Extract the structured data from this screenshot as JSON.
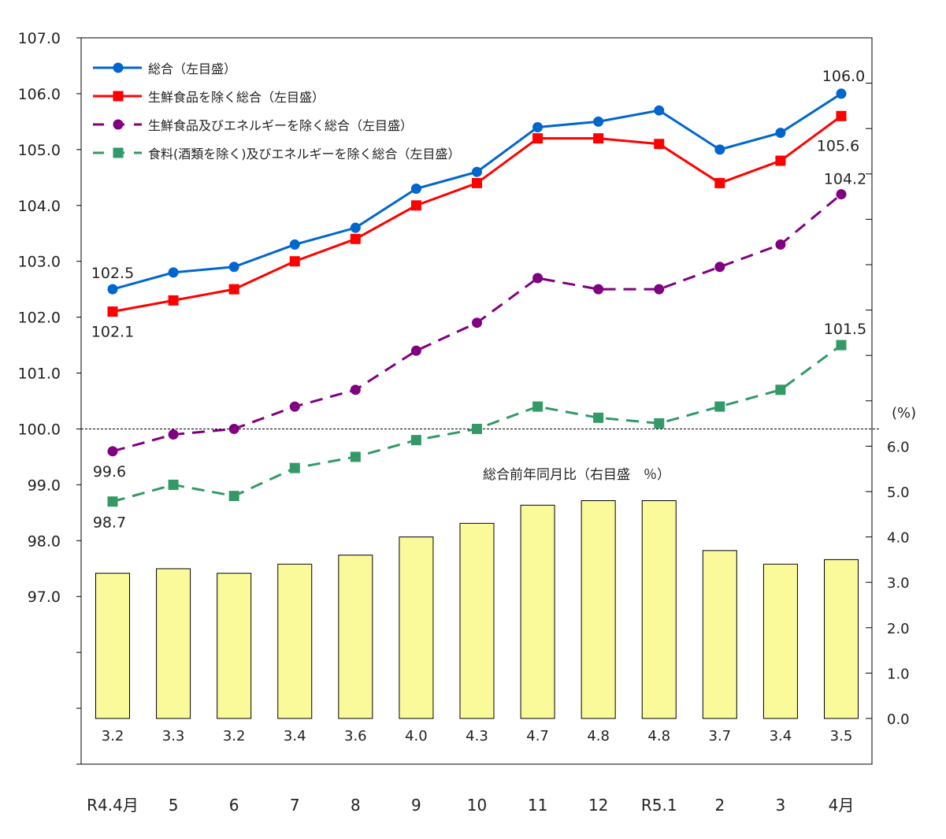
{
  "chart_data": {
    "type": "line+bar",
    "categories": [
      "R4.4月",
      "5",
      "6",
      "7",
      "8",
      "9",
      "10",
      "11",
      "12",
      "R5.1",
      "2",
      "3",
      "4月"
    ],
    "left_axis": {
      "min": 94,
      "max": 107,
      "labeled_ticks": [
        "97.0",
        "98.0",
        "99.0",
        "100.0",
        "101.0",
        "102.0",
        "103.0",
        "104.0",
        "105.0",
        "106.0",
        "107.0"
      ],
      "reference_line": 100
    },
    "right_axis": {
      "min": 0,
      "max": 15,
      "unit_label": "(%)",
      "labeled_ticks": [
        "0.0",
        "1.0",
        "2.0",
        "3.0",
        "4.0",
        "5.0",
        "6.0"
      ]
    },
    "series": [
      {
        "name": "総合（左目盛）",
        "color": "#0066cc",
        "marker": "circle",
        "dash": false,
        "values": [
          102.5,
          102.8,
          102.9,
          103.3,
          103.6,
          104.3,
          104.6,
          105.4,
          105.5,
          105.7,
          105.0,
          105.3,
          106.0
        ],
        "labels": {
          "first": "102.5",
          "last": "106.0"
        }
      },
      {
        "name": "生鮮食品を除く総合（左目盛）",
        "color": "#ff0000",
        "marker": "square",
        "dash": false,
        "values": [
          102.1,
          102.3,
          102.5,
          103.0,
          103.4,
          104.0,
          104.4,
          105.2,
          105.2,
          105.1,
          104.4,
          104.8,
          105.6
        ],
        "labels": {
          "first": "102.1",
          "last": "105.6"
        }
      },
      {
        "name": "生鮮食品及びエネルギーを除く総合（左目盛）",
        "color": "#800080",
        "marker": "circle",
        "dash": true,
        "values": [
          99.6,
          99.9,
          100.0,
          100.4,
          100.7,
          101.4,
          101.9,
          102.7,
          102.5,
          102.5,
          102.9,
          103.3,
          104.2
        ],
        "labels": {
          "first": "99.6",
          "last": "104.2"
        }
      },
      {
        "name": "食料(酒類を除く)及びエネルギーを除く総合（左目盛）",
        "color": "#339966",
        "marker": "square",
        "dash": true,
        "values": [
          98.7,
          99.0,
          98.8,
          99.3,
          99.5,
          99.8,
          100.0,
          100.4,
          100.2,
          100.1,
          100.4,
          100.7,
          101.5
        ],
        "labels": {
          "first": "98.7",
          "last": "101.5"
        }
      }
    ],
    "bars": {
      "name": "総合前年同月比（右目盛　％）",
      "color": "#fafa9a",
      "values": [
        3.2,
        3.3,
        3.2,
        3.4,
        3.6,
        4.0,
        4.3,
        4.7,
        4.8,
        4.8,
        3.7,
        3.4,
        3.5
      ],
      "labels": [
        "3.2",
        "3.3",
        "3.2",
        "3.4",
        "3.6",
        "4.0",
        "4.3",
        "4.7",
        "4.8",
        "4.8",
        "3.7",
        "3.4",
        "3.5"
      ]
    }
  }
}
